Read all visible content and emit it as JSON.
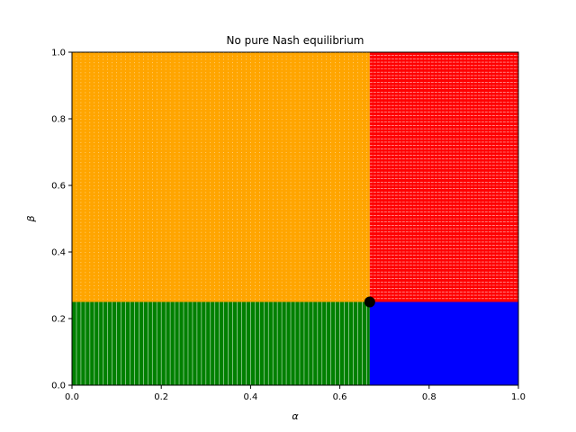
{
  "chart_data": {
    "type": "scatter",
    "title": "No pure Nash equilibrium",
    "xlabel": "α",
    "ylabel": "β",
    "xlim": [
      0.0,
      1.0
    ],
    "ylim": [
      0.0,
      1.0
    ],
    "xticks": [
      "0.0",
      "0.2",
      "0.4",
      "0.6",
      "0.8",
      "1.0"
    ],
    "yticks": [
      "0.0",
      "0.2",
      "0.4",
      "0.6",
      "0.8",
      "1.0"
    ],
    "grid": false,
    "legend": "none",
    "regions": [
      {
        "color": "#ffa500",
        "x": [
          0.0,
          0.667
        ],
        "y": [
          0.25,
          1.0
        ],
        "marker": "vertical-dot-columns",
        "spacing": 0.01
      },
      {
        "color": "#ff0000",
        "x": [
          0.667,
          1.0
        ],
        "y": [
          0.25,
          1.0
        ],
        "marker": "horizontal-dashes",
        "spacing": 0.01
      },
      {
        "color": "#008000",
        "x": [
          0.0,
          0.667
        ],
        "y": [
          0.0,
          0.25
        ],
        "marker": "vertical-bars",
        "spacing": 0.01
      },
      {
        "color": "#0000ff",
        "x": [
          0.667,
          1.0
        ],
        "y": [
          0.0,
          0.25
        ],
        "marker": "solid",
        "spacing": 0.01
      }
    ],
    "equilibrium_point": {
      "x": 0.667,
      "y": 0.25,
      "color": "#000000"
    }
  }
}
